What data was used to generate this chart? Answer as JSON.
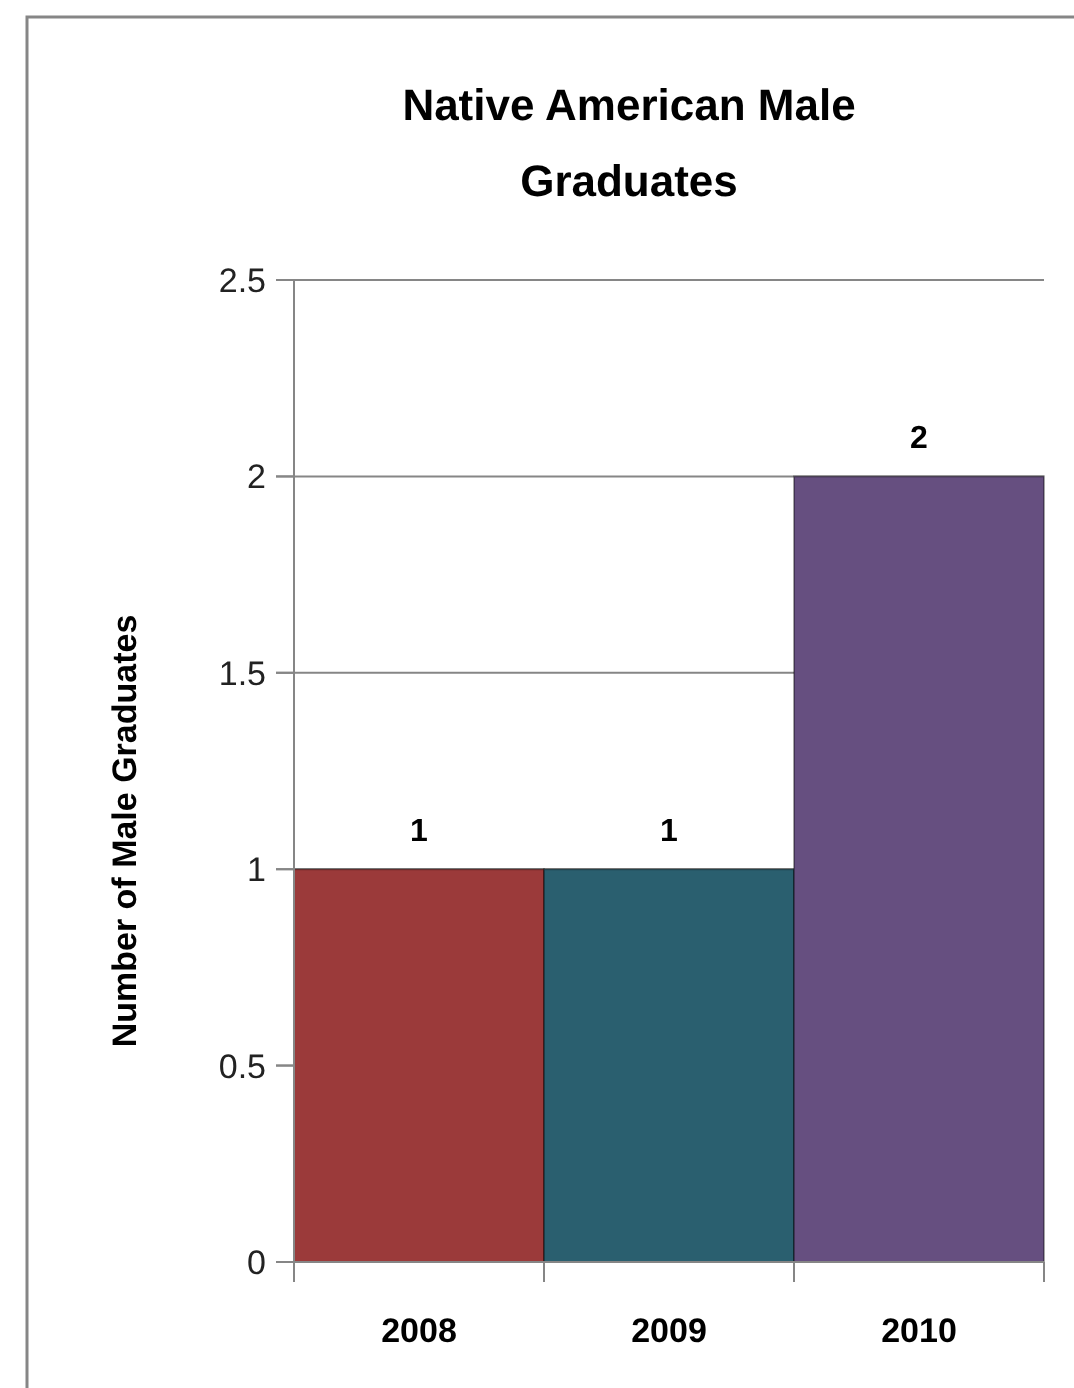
{
  "chart_data": {
    "type": "bar",
    "title": "Native American Male Graduates",
    "ylabel": "Number of Male Graduates",
    "categories": [
      "2008",
      "2009",
      "2010"
    ],
    "values": [
      1,
      1,
      2
    ],
    "colors": [
      "#9b3a3a",
      "#2a5f6f",
      "#664f80"
    ],
    "ylim": [
      0,
      2.5
    ],
    "yticks": [
      0,
      0.5,
      1,
      1.5,
      2,
      2.5
    ],
    "grid": true,
    "data_labels": true
  }
}
